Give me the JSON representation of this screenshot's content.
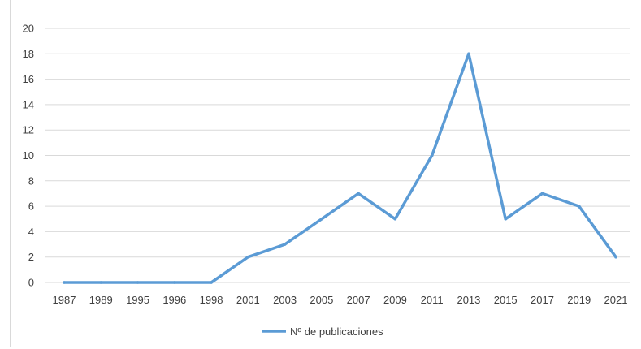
{
  "chart_data": {
    "type": "line",
    "categories": [
      "1987",
      "1989",
      "1995",
      "1996",
      "1998",
      "2001",
      "2003",
      "2005",
      "2007",
      "2009",
      "2011",
      "2013",
      "2015",
      "2017",
      "2019",
      "2021"
    ],
    "series": [
      {
        "name": "Nº de publicaciones",
        "color": "#5b9bd5",
        "values": [
          0,
          0,
          0,
          0,
          0,
          2,
          3,
          5,
          7,
          5,
          10,
          18,
          5,
          7,
          6,
          2
        ]
      }
    ],
    "ylim": [
      0,
      20
    ],
    "yticks": [
      0,
      2,
      4,
      6,
      8,
      10,
      12,
      14,
      16,
      18,
      20
    ],
    "grid": "horizontal",
    "legend_position": "bottom-center",
    "gridline_color": "#d9d9d9"
  }
}
